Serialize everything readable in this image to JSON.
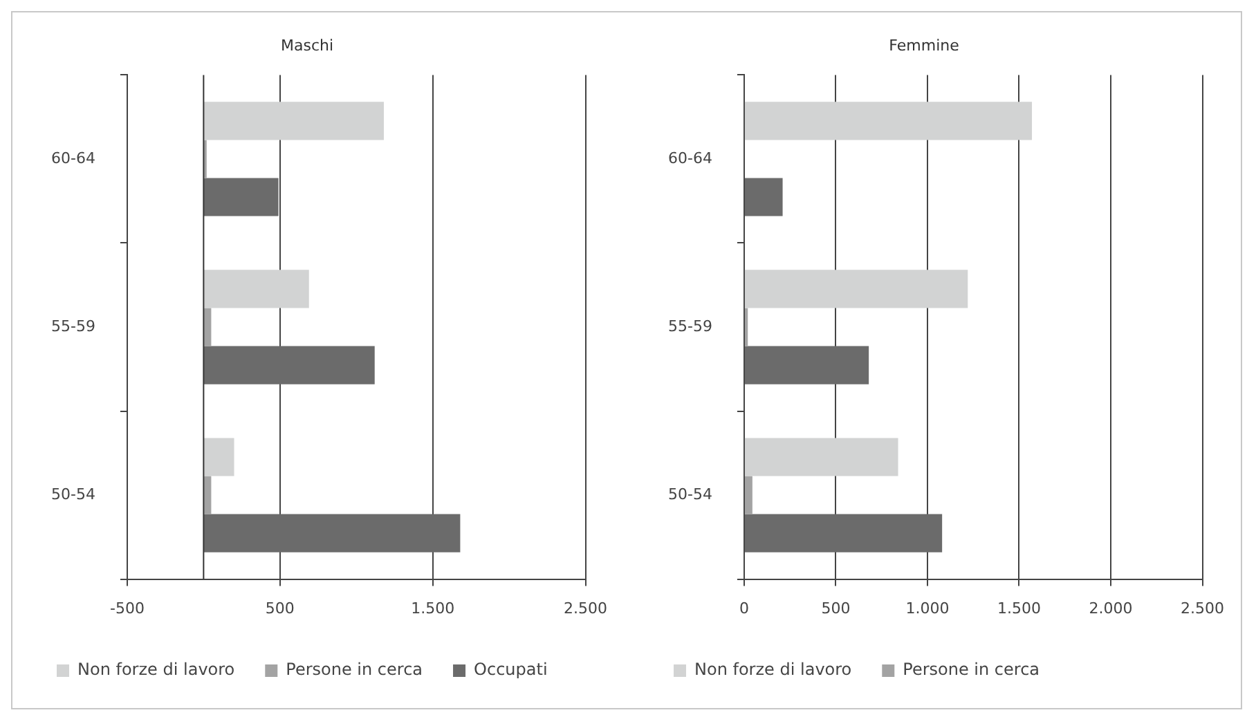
{
  "chart_data": [
    {
      "type": "bar",
      "orientation": "horizontal",
      "title": "Maschi",
      "categories": [
        "60-64",
        "55-59",
        "50-54"
      ],
      "series": [
        {
          "name": "Non forze di lavoro",
          "color": "#d2d3d3",
          "values": [
            1180,
            690,
            200
          ]
        },
        {
          "name": "Persone in cerca",
          "color": "#a3a3a3",
          "values": [
            20,
            50,
            50
          ]
        },
        {
          "name": "Occupati",
          "color": "#6b6b6b",
          "values": [
            490,
            1120,
            1680
          ]
        }
      ],
      "xlim": [
        -500,
        2500
      ],
      "xticks": [
        -500,
        500,
        {
          "value": 1500,
          "label": "1.500"
        },
        {
          "value": 2500,
          "label": "2.500"
        }
      ],
      "ref_lines": [
        {
          "axis": "x",
          "value": 0,
          "color": "#333333"
        }
      ],
      "grid": "x",
      "legend": "bottom"
    },
    {
      "type": "bar",
      "orientation": "horizontal",
      "title": "Femmine",
      "categories": [
        "60-64",
        "55-59",
        "50-54"
      ],
      "series": [
        {
          "name": "Non forze di lavoro",
          "color": "#d2d3d3",
          "values": [
            1570,
            1220,
            840
          ]
        },
        {
          "name": "Persone in cerca",
          "color": "#a3a3a3",
          "values": [
            null,
            20,
            45
          ]
        },
        {
          "color": "#6b6b6b",
          "values": [
            210,
            680,
            1080
          ]
        }
      ],
      "xlim": [
        0,
        2500
      ],
      "xticks": [
        0,
        500,
        {
          "value": 1000,
          "label": "1.000"
        },
        {
          "value": 1500,
          "label": "1.500"
        },
        {
          "value": 2000,
          "label": "2.000"
        },
        {
          "value": 2500,
          "label": "2.500"
        }
      ],
      "grid": "x",
      "legend": "bottom"
    }
  ]
}
